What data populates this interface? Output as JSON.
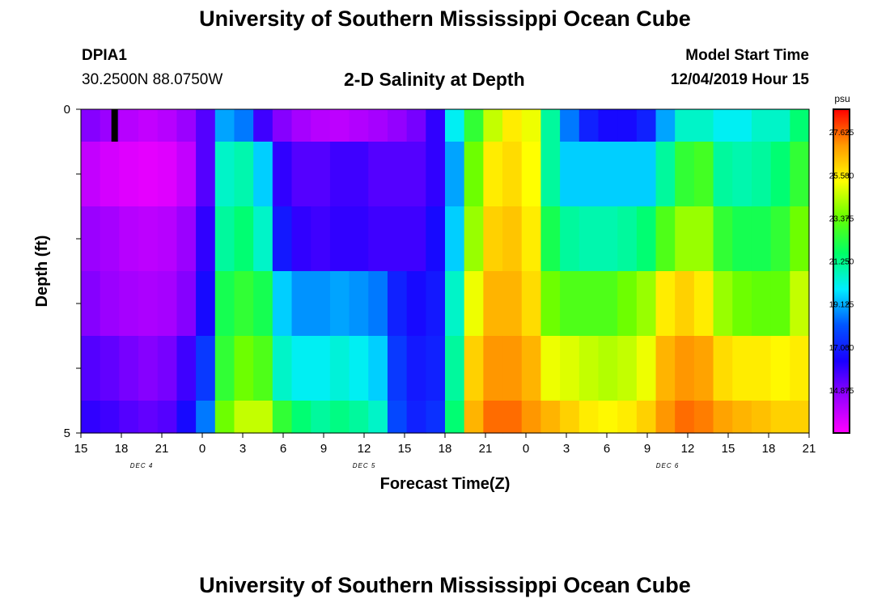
{
  "header": {
    "title": "University of Southern Mississippi Ocean Cube",
    "station_id": "DPIA1",
    "coordinates": "30.2500N 88.0750W",
    "chart_title": "2-D Salinity at Depth",
    "model_start_label": "Model Start Time",
    "model_start_value": "12/04/2019 Hour 15"
  },
  "footer": {
    "title": "University of Southern Mississippi Ocean Cube"
  },
  "colors": {
    "colormap": [
      "#ff00ff",
      "#9900ff",
      "#1a00ff",
      "#0055ff",
      "#00eeff",
      "#00ff66",
      "#66ff00",
      "#ffff00",
      "#ff9900",
      "#ff0000"
    ],
    "marker": "#000000"
  },
  "chart_data": {
    "type": "heatmap",
    "xlabel": "Forecast Time(Z)",
    "ylabel": "Depth (ft)",
    "colorbar_unit": "psu",
    "x_start_hour": 15,
    "x_end_hour": 69,
    "x_tick_labels": [
      "15",
      "18",
      "21",
      "0",
      "3",
      "6",
      "9",
      "12",
      "15",
      "18",
      "21",
      "0",
      "3",
      "6",
      "9",
      "12",
      "15",
      "18",
      "21"
    ],
    "day_labels": [
      {
        "label": "DEC 4",
        "hour": 19.5
      },
      {
        "label": "DEC 5",
        "hour": 36
      },
      {
        "label": "DEC 6",
        "hour": 58.5
      }
    ],
    "y_tick_labels": [
      "0",
      "5"
    ],
    "ylim": [
      0,
      5
    ],
    "colorbar_range": [
      12.75,
      28.75
    ],
    "colorbar_ticks": [
      "27.625",
      "25.500",
      "23.375",
      "21.250",
      "19.125",
      "17.000",
      "14.875"
    ],
    "depth_layers": [
      0,
      0.5,
      1.5,
      2.5,
      3.5,
      4.5
    ],
    "layer_bounds": [
      0,
      0.5,
      1.5,
      2.5,
      3.5,
      4.5,
      5
    ],
    "current_time_marker": {
      "hour": 17.5,
      "depth_bottom": 0.5
    },
    "series": [
      {
        "name": "0 ft",
        "values": [
          14.8,
          14.5,
          14.0,
          13.8,
          14.0,
          14.5,
          15.5,
          19.0,
          18.5,
          15.8,
          14.8,
          14.3,
          14.0,
          13.9,
          14.1,
          14.3,
          14.6,
          15.0,
          16.0,
          20.0,
          22.5,
          24.5,
          25.5,
          25.0,
          21.0,
          18.5,
          17.0,
          16.5,
          16.5,
          17.0,
          19.0,
          20.5,
          20.5,
          20.0,
          20.0,
          20.5,
          20.5,
          21.5
        ]
      },
      {
        "name": "1 ft",
        "values": [
          13.8,
          13.5,
          13.3,
          13.2,
          13.3,
          13.8,
          15.5,
          20.5,
          20.8,
          19.5,
          16.0,
          15.5,
          15.5,
          15.8,
          15.8,
          15.5,
          15.5,
          15.5,
          16.0,
          19.0,
          23.5,
          25.5,
          25.8,
          25.2,
          21.0,
          19.5,
          19.5,
          19.5,
          19.5,
          19.5,
          21.0,
          22.5,
          22.8,
          21.0,
          20.8,
          21.0,
          21.5,
          22.5
        ]
      },
      {
        "name": "2 ft",
        "values": [
          14.5,
          14.3,
          14.0,
          13.9,
          14.0,
          14.5,
          16.0,
          21.0,
          21.5,
          20.5,
          16.8,
          16.0,
          15.8,
          16.0,
          16.0,
          15.8,
          15.8,
          15.8,
          16.5,
          19.5,
          24.0,
          26.0,
          26.2,
          25.5,
          22.0,
          21.0,
          20.8,
          20.8,
          21.0,
          21.5,
          23.0,
          24.0,
          24.0,
          22.5,
          22.0,
          22.0,
          22.5,
          23.5
        ]
      },
      {
        "name": "3 ft",
        "values": [
          14.8,
          14.5,
          14.3,
          14.2,
          14.3,
          14.8,
          16.5,
          22.0,
          22.5,
          22.0,
          19.5,
          18.8,
          18.8,
          19.0,
          18.8,
          18.5,
          17.0,
          16.5,
          16.8,
          20.5,
          25.0,
          26.5,
          26.5,
          25.8,
          23.5,
          23.0,
          23.0,
          23.0,
          23.5,
          24.0,
          25.5,
          26.0,
          25.5,
          24.0,
          23.5,
          23.3,
          23.3,
          24.5
        ]
      },
      {
        "name": "4 ft",
        "values": [
          15.5,
          15.3,
          15.0,
          14.8,
          15.0,
          15.8,
          17.5,
          22.5,
          23.5,
          23.0,
          20.5,
          20.0,
          20.0,
          20.3,
          20.0,
          19.5,
          17.5,
          16.8,
          17.0,
          21.0,
          26.0,
          27.0,
          27.0,
          26.5,
          25.0,
          24.8,
          24.5,
          24.3,
          24.5,
          25.0,
          26.5,
          27.0,
          26.8,
          25.8,
          25.5,
          25.5,
          25.3,
          25.5
        ]
      },
      {
        "name": "5 ft",
        "values": [
          16.0,
          15.8,
          15.5,
          15.3,
          15.5,
          16.5,
          18.5,
          23.5,
          24.5,
          24.5,
          22.5,
          21.5,
          21.0,
          21.3,
          21.0,
          20.5,
          17.8,
          17.0,
          17.3,
          21.5,
          26.5,
          27.5,
          27.5,
          27.0,
          26.5,
          26.0,
          25.5,
          25.3,
          25.5,
          26.0,
          27.0,
          27.5,
          27.3,
          26.8,
          26.5,
          26.3,
          26.0,
          26.0
        ]
      }
    ]
  }
}
